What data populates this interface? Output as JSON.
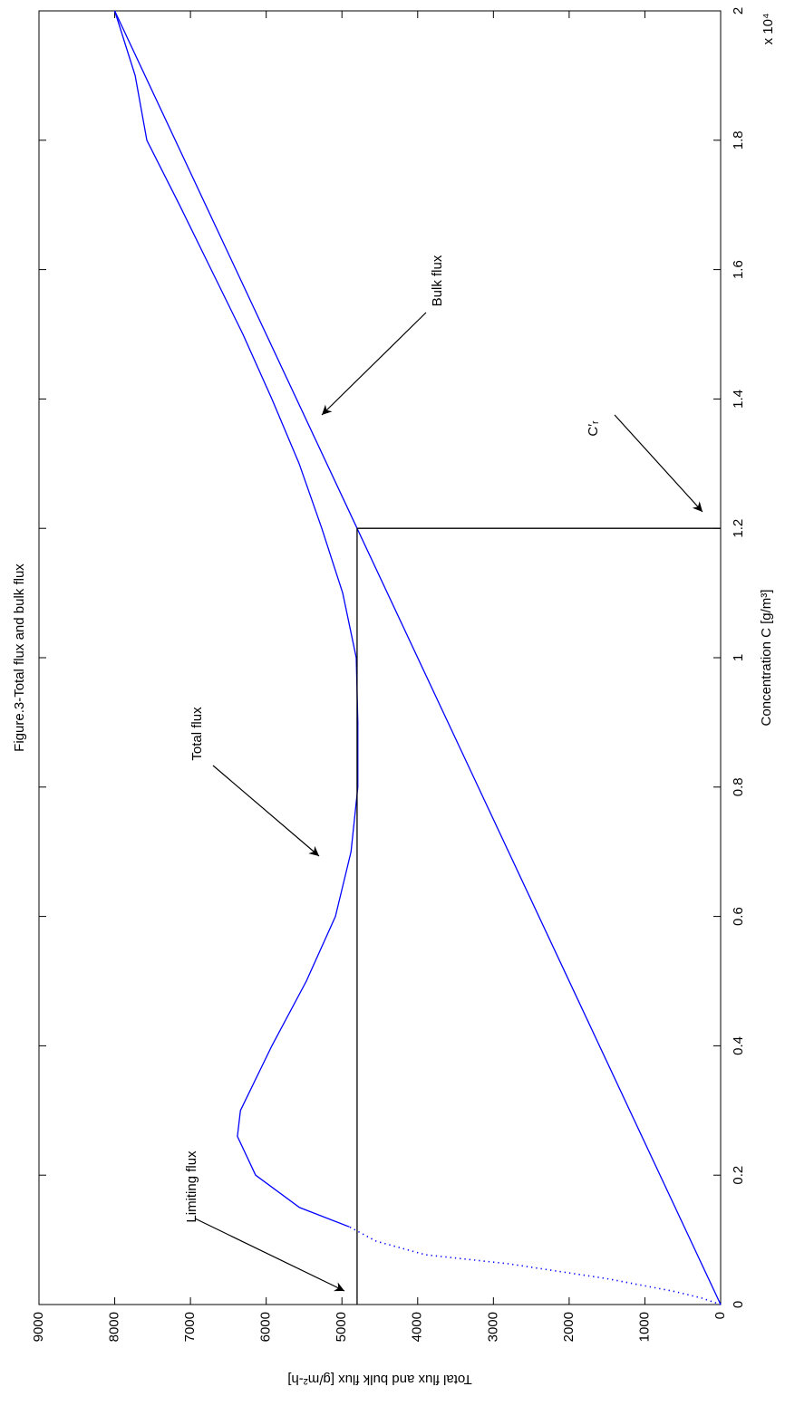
{
  "chart_data": {
    "type": "line",
    "title": "Figure.3-Total flux and bulk flux",
    "x_label": "Concentration C [g/m³]",
    "y_label": "Total flux and bulk flux [g/m²-h]",
    "x_multiplier": "x 10⁴",
    "xlim": [
      0,
      20000
    ],
    "xticks": [
      {
        "value": 0,
        "label": "0"
      },
      {
        "value": 2000,
        "label": "0.2"
      },
      {
        "value": 4000,
        "label": "0.4"
      },
      {
        "value": 6000,
        "label": "0.6"
      },
      {
        "value": 8000,
        "label": "0.8"
      },
      {
        "value": 10000,
        "label": "1"
      },
      {
        "value": 12000,
        "label": "1.2"
      },
      {
        "value": 14000,
        "label": "1.4"
      },
      {
        "value": 16000,
        "label": "1.6"
      },
      {
        "value": 18000,
        "label": "1.8"
      },
      {
        "value": 20000,
        "label": "2"
      }
    ],
    "ylim": [
      0,
      9000
    ],
    "yticks": [
      0,
      1000,
      2000,
      3000,
      4000,
      5000,
      6000,
      7000,
      8000,
      9000
    ],
    "series": [
      {
        "color": "#0000ff",
        "style": "dotted",
        "x": [
          0,
          100,
          200,
          400,
          630,
          770,
          980,
          1200
        ],
        "values": [
          0,
          250,
          600,
          1500,
          2800,
          3900,
          4550,
          4900
        ]
      },
      {
        "color": "#0000ff",
        "style": "solid",
        "x": [
          1200,
          1500,
          2000,
          2600,
          3000,
          4000,
          5000,
          6000,
          7000,
          8000,
          9000,
          10000,
          11000,
          12000,
          13000,
          14000,
          15000,
          16000,
          17000,
          18000,
          19000,
          20000
        ],
        "values": [
          4900,
          5560,
          6140,
          6380,
          6340,
          5925,
          5470,
          5086,
          4880,
          4790,
          4790,
          4811,
          4990,
          5266,
          5565,
          5925,
          6307,
          6726,
          7145,
          7576,
          7730,
          8000
        ]
      },
      {
        "color": "#0000ff",
        "style": "solid",
        "x": [
          0,
          20000
        ],
        "values": [
          0,
          8000
        ]
      },
      {
        "color": "#000000",
        "style": "solid",
        "x": [
          0,
          12000
        ],
        "values": [
          4800,
          4800
        ]
      },
      {
        "color": "#000000",
        "style": "solid",
        "x": [
          12000,
          12000
        ],
        "values": [
          0,
          4800
        ]
      }
    ],
    "annotations": [
      "Limiting flux",
      "Total flux",
      "Bulk flux",
      "C′ᵣ"
    ]
  }
}
